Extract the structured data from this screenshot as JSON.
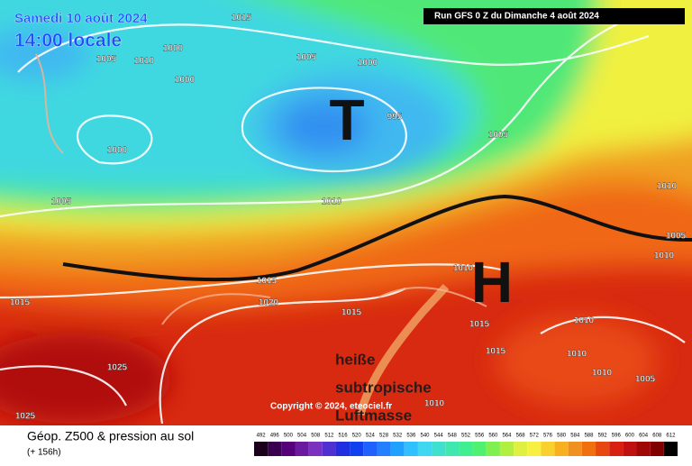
{
  "header": {
    "date": "Samedi 10 août 2024",
    "time": "14:00 locale",
    "run": "Run GFS 0 Z du Dimanche 4 août 2024"
  },
  "map": {
    "low_symbol": "T",
    "high_symbol": "H",
    "isobar_labels": [
      1015,
      1000,
      1005,
      1010,
      1000,
      1005,
      1000,
      995,
      1000,
      1005,
      1005,
      1010,
      1015,
      1020,
      1015,
      1015,
      1015,
      1015,
      1010,
      1010,
      1010,
      1005,
      1025,
      1025,
      1010,
      1005,
      1010,
      1010,
      1010
    ],
    "annotation": [
      "heiße",
      "subtropische",
      "Luftmasse"
    ],
    "copyright": "Copyright © 2024, eteociel.fr"
  },
  "footer": {
    "title": "Géop. Z500 & pression au sol",
    "lead": "(+ 156h)",
    "scale": [
      492,
      496,
      500,
      504,
      508,
      512,
      516,
      520,
      524,
      528,
      532,
      536,
      540,
      544,
      548,
      552,
      556,
      560,
      564,
      568,
      572,
      576,
      580,
      584,
      588,
      592,
      596,
      600,
      604,
      608,
      612
    ],
    "colors": [
      "#1a001a",
      "#3a0050",
      "#55007a",
      "#6a1aa0",
      "#7a30c0",
      "#5030d0",
      "#2030e0",
      "#1040f0",
      "#2060ff",
      "#2080ff",
      "#20a0ff",
      "#30c0ff",
      "#40d8f0",
      "#40e0d0",
      "#40e8b0",
      "#40f090",
      "#50f070",
      "#80f050",
      "#b0f040",
      "#e0f040",
      "#f8f040",
      "#f8d030",
      "#f8b020",
      "#f09020",
      "#f07010",
      "#e84810",
      "#d82010",
      "#c01010",
      "#a00808",
      "#800000",
      "#000000"
    ]
  }
}
